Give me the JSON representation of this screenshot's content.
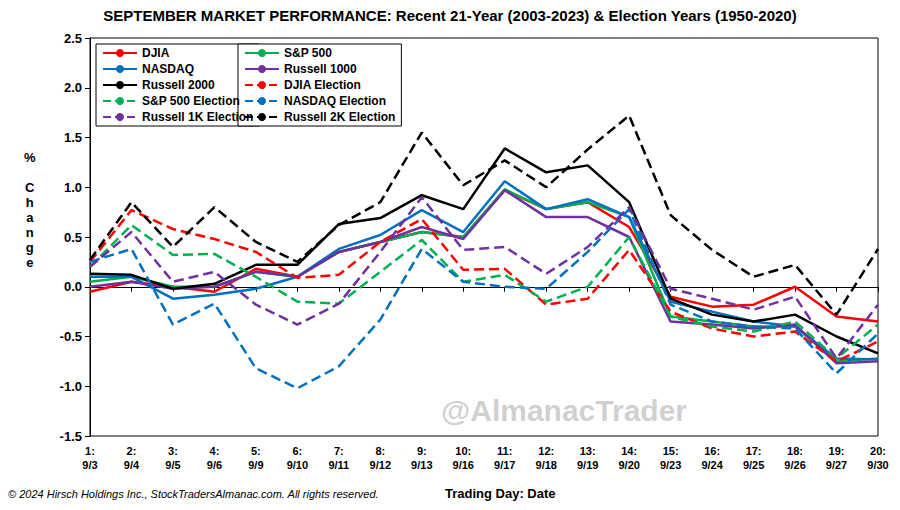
{
  "chart_data": {
    "type": "line",
    "title": "SEPTEMBER MARKET PERFORMANCE: Recent 21-Year (2003-2023) & Election Years (1950-2020)",
    "xlabel": "Trading Day: Date",
    "ylabel": "% Change",
    "footer": "© 2024 Hirsch Holdings Inc., StockTradersAlmanac.com. All rights reserved.",
    "watermark": "@AlmanacTrader",
    "categories": [
      "1:\n9/3",
      "2:\n9/4",
      "3:\n9/5",
      "4:\n9/6",
      "5:\n9/9",
      "6:\n9/10",
      "7:\n9/11",
      "8:\n9/12",
      "9:\n9/13",
      "10:\n9/16",
      "11:\n9/17",
      "12:\n9/18",
      "13:\n9/19",
      "14:\n9/20",
      "15:\n9/23",
      "16:\n9/24",
      "17:\n9/25",
      "18:\n9/26",
      "19:\n9/27",
      "20:\n9/30"
    ],
    "ylim": [
      -1.5,
      2.5
    ],
    "yticks": [
      -1.5,
      {
        "value": -1,
        "label": "-1.0"
      },
      -0.5,
      {
        "value": 0,
        "label": "0.0"
      },
      0.5,
      {
        "value": 1,
        "label": "1.0"
      },
      1.5,
      {
        "value": 2,
        "label": "2.0"
      },
      2.5
    ],
    "grid": false,
    "legend": "top-left",
    "series": [
      {
        "name": "DJIA",
        "color": "#ff0000",
        "line_style": "solid",
        "values": [
          -0.05,
          0.05,
          0.0,
          -0.05,
          0.18,
          0.1,
          0.35,
          0.45,
          0.55,
          0.5,
          0.97,
          0.78,
          0.85,
          0.6,
          -0.1,
          -0.2,
          -0.18,
          0.0,
          -0.3,
          -0.35
        ]
      },
      {
        "name": "S&P 500",
        "color": "#00b050",
        "line_style": "solid",
        "values": [
          0.05,
          0.1,
          0.0,
          0.0,
          0.15,
          0.1,
          0.35,
          0.45,
          0.55,
          0.5,
          0.98,
          0.78,
          0.85,
          0.7,
          -0.3,
          -0.35,
          -0.4,
          -0.4,
          -0.75,
          -0.72
        ]
      },
      {
        "name": "NASDAQ",
        "color": "#0070c0",
        "line_style": "solid",
        "values": [
          0.1,
          0.1,
          -0.12,
          -0.08,
          -0.02,
          0.1,
          0.38,
          0.52,
          0.77,
          0.55,
          1.06,
          0.78,
          0.88,
          0.7,
          -0.15,
          -0.25,
          -0.35,
          -0.4,
          -0.72,
          -0.73
        ]
      },
      {
        "name": "Russell 1000",
        "color": "#7030a0",
        "line_style": "solid",
        "values": [
          0.0,
          0.05,
          -0.02,
          0.0,
          0.15,
          0.1,
          0.35,
          0.45,
          0.6,
          0.48,
          0.97,
          0.7,
          0.7,
          0.5,
          -0.35,
          -0.38,
          -0.42,
          -0.38,
          -0.77,
          -0.75
        ]
      },
      {
        "name": "Russell 2000",
        "color": "#000000",
        "line_style": "solid",
        "values": [
          0.13,
          0.12,
          -0.02,
          0.03,
          0.22,
          0.22,
          0.63,
          0.69,
          0.92,
          0.78,
          1.39,
          1.15,
          1.22,
          0.85,
          -0.12,
          -0.28,
          -0.35,
          -0.28,
          -0.5,
          -0.67
        ]
      },
      {
        "name": "DJIA Election",
        "color": "#ff0000",
        "line_style": "dashed",
        "values": [
          0.25,
          0.77,
          0.58,
          0.48,
          0.35,
          0.09,
          0.12,
          0.45,
          0.68,
          0.17,
          0.18,
          -0.18,
          -0.12,
          0.37,
          -0.25,
          -0.42,
          -0.5,
          -0.45,
          -0.75,
          -0.55
        ]
      },
      {
        "name": "S&P 500 Election",
        "color": "#00b050",
        "line_style": "dashed",
        "values": [
          0.2,
          0.62,
          0.32,
          0.33,
          0.1,
          -0.15,
          -0.17,
          0.15,
          0.47,
          0.05,
          0.12,
          -0.15,
          0.0,
          0.5,
          -0.3,
          -0.4,
          -0.45,
          -0.35,
          -0.72,
          -0.38
        ]
      },
      {
        "name": "NASDAQ Election",
        "color": "#0070c0",
        "line_style": "dashed",
        "values": [
          0.25,
          0.38,
          -0.38,
          -0.17,
          -0.82,
          -1.02,
          -0.8,
          -0.33,
          0.38,
          0.05,
          0.0,
          -0.02,
          0.35,
          0.78,
          -0.18,
          -0.35,
          -0.4,
          -0.42,
          -0.87,
          -0.47
        ]
      },
      {
        "name": "Russell 1K Election",
        "color": "#7030a0",
        "line_style": "dashed",
        "values": [
          0.2,
          0.55,
          0.05,
          0.15,
          -0.18,
          -0.38,
          -0.17,
          0.35,
          0.9,
          0.37,
          0.4,
          0.13,
          0.4,
          0.8,
          -0.02,
          -0.12,
          -0.23,
          -0.1,
          -0.72,
          -0.18
        ]
      },
      {
        "name": "Russell 2K Election",
        "color": "#000000",
        "line_style": "dashed",
        "values": [
          0.27,
          0.85,
          0.4,
          0.8,
          0.45,
          0.25,
          0.62,
          0.85,
          1.55,
          1.02,
          1.27,
          1.0,
          1.38,
          1.72,
          0.72,
          0.37,
          0.1,
          0.22,
          -0.28,
          0.38
        ]
      }
    ]
  }
}
